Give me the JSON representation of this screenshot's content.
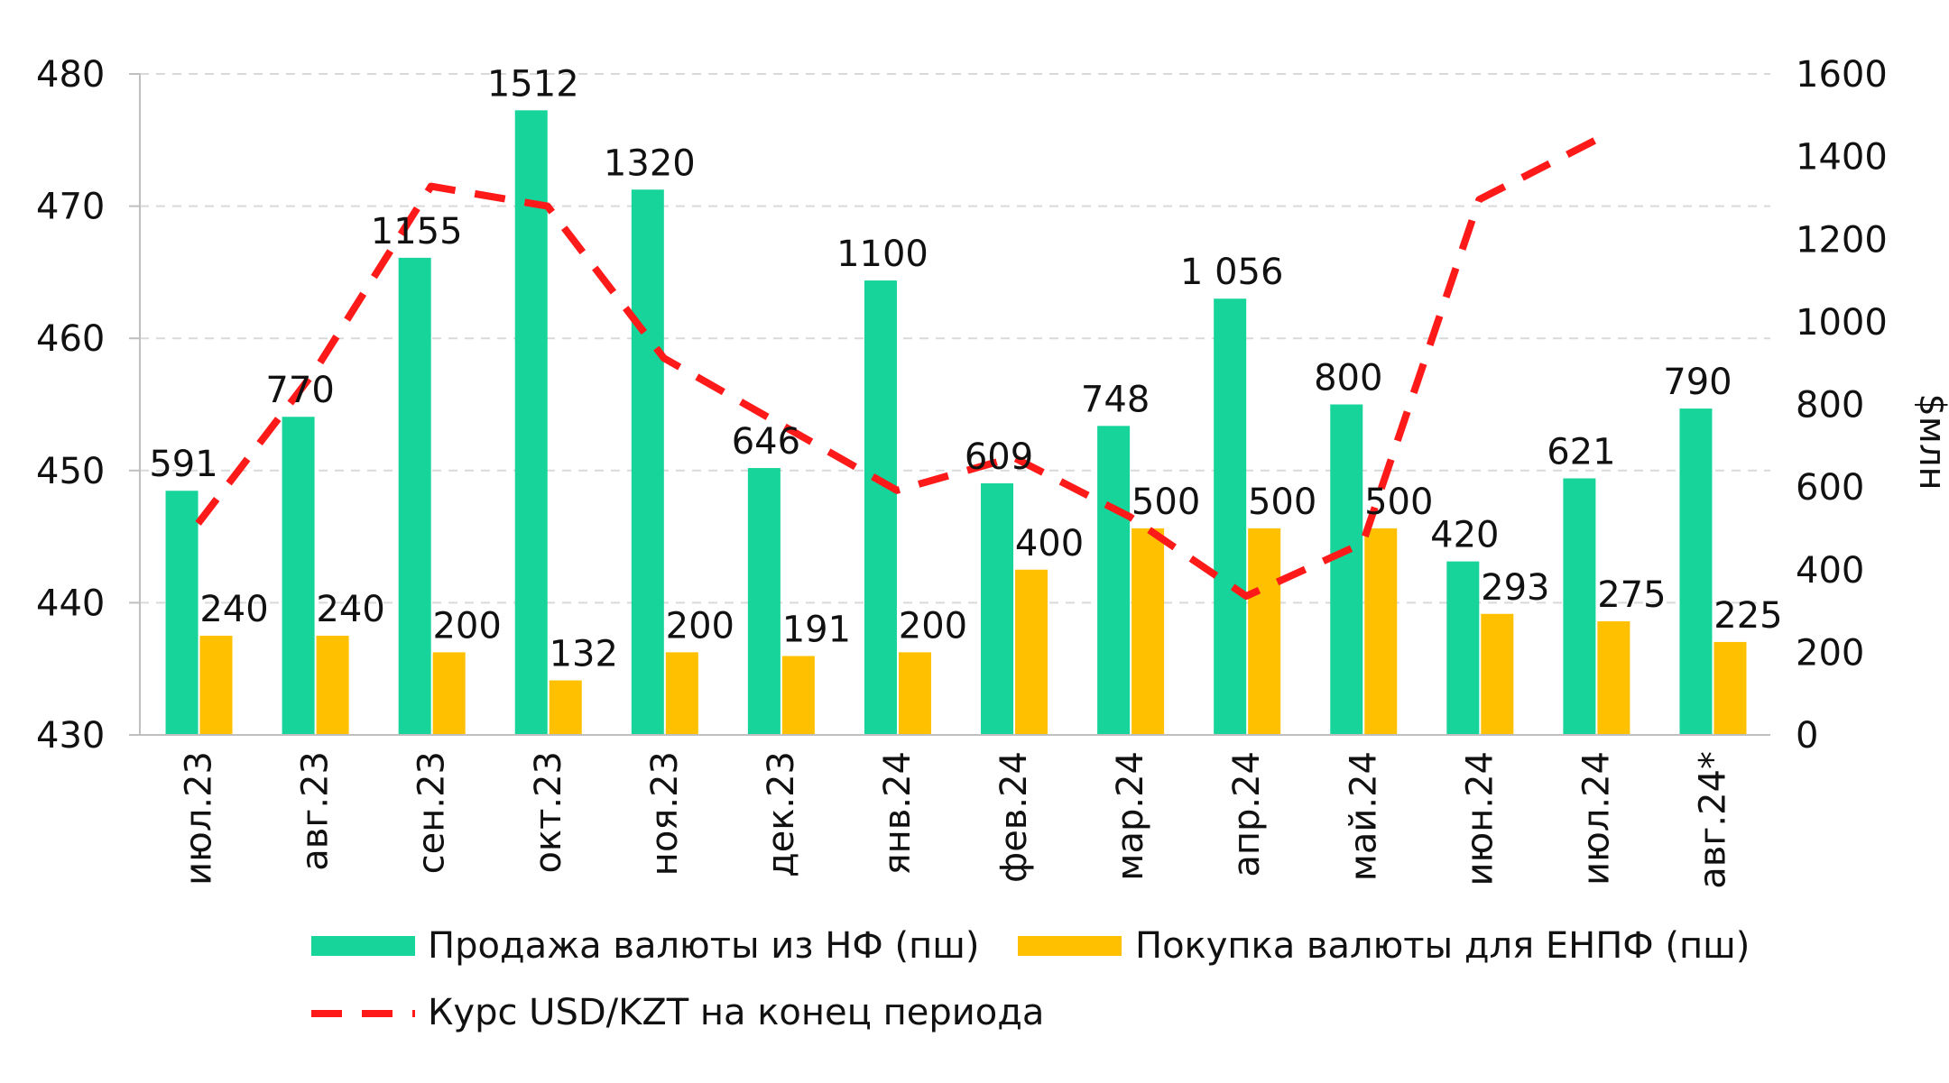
{
  "chart_data": {
    "type": "bar",
    "categories": [
      "июл.23",
      "авг.23",
      "сен.23",
      "окт.23",
      "ноя.23",
      "дек.23",
      "янв.24",
      "фев.24",
      "мар.24",
      "апр.24",
      "май.24",
      "июн.24",
      "июл.24",
      "авг.24*"
    ],
    "series": [
      {
        "name": "Продажа валюты из НФ (пш)",
        "type": "bar",
        "axis": "right",
        "color": "#17d49a",
        "values": [
          591,
          770,
          1155,
          1512,
          1320,
          646,
          1100,
          609,
          748,
          1056,
          800,
          420,
          621,
          790
        ],
        "labels": [
          "591",
          "770",
          "1155",
          "1512",
          "1320",
          "646",
          "1100",
          "609",
          "748",
          "1 056",
          "800",
          "420",
          "621",
          "790"
        ]
      },
      {
        "name": "Покупка валюты для ЕНПФ (пш)",
        "type": "bar",
        "axis": "right",
        "color": "#ffc000",
        "values": [
          240,
          240,
          200,
          132,
          200,
          191,
          200,
          400,
          500,
          500,
          500,
          293,
          275,
          225
        ],
        "labels": [
          "240",
          "240",
          "200",
          "132",
          "200",
          "191",
          "200",
          "400",
          "500",
          "500",
          "500",
          "293",
          "275",
          "225"
        ]
      },
      {
        "name": "Курс USD/KZT на конец периода",
        "type": "line",
        "style": "dashed",
        "axis": "left",
        "color": "#ff1a1a",
        "values": [
          446,
          457.5,
          471.5,
          470,
          458.5,
          453.5,
          448.5,
          451,
          446.5,
          440.5,
          444.5,
          470.5,
          475,
          null
        ]
      }
    ],
    "y_left": {
      "ylim": [
        430,
        480
      ],
      "ticks": [
        "430",
        "440",
        "450",
        "460",
        "470",
        "480"
      ]
    },
    "y_right": {
      "ylim": [
        0,
        1600
      ],
      "ticks": [
        "0",
        "200",
        "400",
        "600",
        "800",
        "1000",
        "1200",
        "1400",
        "1600"
      ],
      "label": "$млн"
    },
    "grid": "horizontal-dashed",
    "legend_position": "bottom"
  }
}
